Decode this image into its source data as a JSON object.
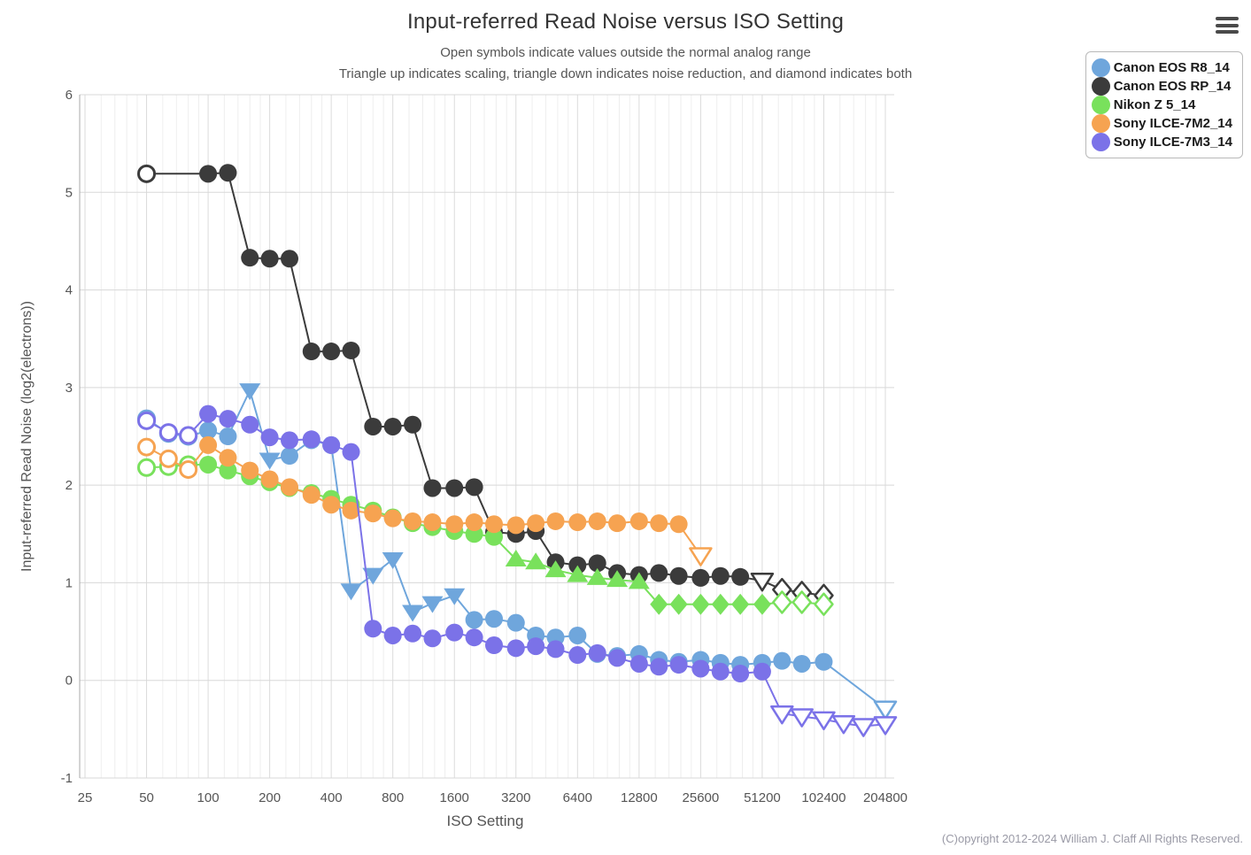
{
  "page": {
    "title": "Input-referred Read Noise versus ISO Setting",
    "subtitle1": "Open symbols indicate values outside the normal analog range",
    "subtitle2": "Triangle up indicates scaling, triangle down indicates noise reduction, and diamond indicates both",
    "copyright": "(C)opyright 2012-2024 William J. Claff All Rights Reserved.",
    "icons": {
      "menu": "hamburger-icon"
    }
  },
  "chart_data": {
    "type": "line",
    "title": "Input-referred Read Noise versus ISO Setting",
    "xlabel": "ISO Setting",
    "ylabel": "Input-referred Read Noise (log2(electrons))",
    "x_scale": "log2",
    "xlim": [
      25,
      204800
    ],
    "ylim": [
      -1,
      6
    ],
    "x_ticks": [
      25,
      50,
      100,
      200,
      400,
      800,
      1600,
      3200,
      6400,
      12800,
      25600,
      51200,
      102400,
      204800
    ],
    "y_ticks": [
      -1,
      0,
      1,
      2,
      3,
      4,
      5,
      6
    ],
    "grid": true,
    "legend_position": "top-right",
    "marker_semantics": {
      "open": "outside normal analog range",
      "triangle-up": "scaling",
      "triangle-down": "noise reduction",
      "diamond": "scaling and noise reduction"
    },
    "series": [
      {
        "name": "Canon EOS R8_14",
        "color": "#6FA6DC",
        "points": [
          [
            50,
            2.68,
            "circle-open"
          ],
          [
            64,
            2.53,
            "circle-open"
          ],
          [
            80,
            2.5,
            "circle-open"
          ],
          [
            100,
            2.56,
            "circle"
          ],
          [
            125,
            2.5,
            "circle"
          ],
          [
            160,
            2.97,
            "triangle-down"
          ],
          [
            200,
            2.26,
            "triangle-down"
          ],
          [
            250,
            2.3,
            "circle"
          ],
          [
            320,
            2.46,
            "circle"
          ],
          [
            400,
            2.41,
            "circle"
          ],
          [
            500,
            0.92,
            "triangle-down"
          ],
          [
            640,
            1.08,
            "triangle-down"
          ],
          [
            800,
            1.24,
            "triangle-down"
          ],
          [
            1000,
            0.7,
            "triangle-down"
          ],
          [
            1250,
            0.79,
            "triangle-down"
          ],
          [
            1600,
            0.87,
            "triangle-down"
          ],
          [
            2000,
            0.62,
            "circle"
          ],
          [
            2500,
            0.63,
            "circle"
          ],
          [
            3200,
            0.59,
            "circle"
          ],
          [
            4000,
            0.46,
            "circle"
          ],
          [
            5000,
            0.44,
            "circle"
          ],
          [
            6400,
            0.46,
            "circle"
          ],
          [
            8000,
            0.27,
            "circle"
          ],
          [
            10000,
            0.25,
            "circle"
          ],
          [
            12800,
            0.27,
            "circle"
          ],
          [
            16000,
            0.21,
            "circle"
          ],
          [
            20000,
            0.19,
            "circle"
          ],
          [
            25600,
            0.21,
            "circle"
          ],
          [
            32000,
            0.18,
            "circle"
          ],
          [
            40000,
            0.16,
            "circle"
          ],
          [
            51200,
            0.18,
            "circle"
          ],
          [
            64000,
            0.2,
            "circle"
          ],
          [
            80000,
            0.17,
            "circle"
          ],
          [
            102400,
            0.19,
            "circle"
          ],
          [
            204800,
            -0.29,
            "triangle-down-open"
          ]
        ]
      },
      {
        "name": "Canon EOS RP_14",
        "color": "#3B3B3B",
        "points": [
          [
            50,
            5.19,
            "circle-open"
          ],
          [
            100,
            5.19,
            "circle"
          ],
          [
            125,
            5.2,
            "circle"
          ],
          [
            160,
            4.33,
            "circle"
          ],
          [
            200,
            4.32,
            "circle"
          ],
          [
            250,
            4.32,
            "circle"
          ],
          [
            320,
            3.37,
            "circle"
          ],
          [
            400,
            3.37,
            "circle"
          ],
          [
            500,
            3.38,
            "circle"
          ],
          [
            640,
            2.6,
            "circle"
          ],
          [
            800,
            2.6,
            "circle"
          ],
          [
            1000,
            2.62,
            "circle"
          ],
          [
            1250,
            1.97,
            "circle"
          ],
          [
            1600,
            1.97,
            "circle"
          ],
          [
            2000,
            1.98,
            "circle"
          ],
          [
            2500,
            1.52,
            "circle"
          ],
          [
            3200,
            1.5,
            "circle"
          ],
          [
            4000,
            1.53,
            "circle"
          ],
          [
            5000,
            1.21,
            "circle"
          ],
          [
            6400,
            1.18,
            "circle"
          ],
          [
            8000,
            1.2,
            "circle"
          ],
          [
            10000,
            1.1,
            "circle"
          ],
          [
            12800,
            1.08,
            "circle"
          ],
          [
            16000,
            1.1,
            "circle"
          ],
          [
            20000,
            1.07,
            "circle"
          ],
          [
            25600,
            1.05,
            "circle"
          ],
          [
            32000,
            1.07,
            "circle"
          ],
          [
            40000,
            1.06,
            "circle"
          ],
          [
            51200,
            1.02,
            "triangle-down-open"
          ],
          [
            64000,
            0.93,
            "diamond-open"
          ],
          [
            80000,
            0.9,
            "diamond-open"
          ],
          [
            102400,
            0.87,
            "diamond-open"
          ]
        ]
      },
      {
        "name": "Nikon Z 5_14",
        "color": "#79E15C",
        "points": [
          [
            50,
            2.18,
            "circle-open"
          ],
          [
            64,
            2.19,
            "circle-open"
          ],
          [
            80,
            2.21,
            "circle-open"
          ],
          [
            100,
            2.21,
            "circle"
          ],
          [
            125,
            2.15,
            "circle"
          ],
          [
            160,
            2.09,
            "circle"
          ],
          [
            200,
            2.03,
            "circle"
          ],
          [
            250,
            1.97,
            "circle"
          ],
          [
            320,
            1.92,
            "circle"
          ],
          [
            400,
            1.86,
            "circle"
          ],
          [
            500,
            1.8,
            "circle"
          ],
          [
            640,
            1.74,
            "circle"
          ],
          [
            800,
            1.67,
            "circle"
          ],
          [
            1000,
            1.61,
            "circle"
          ],
          [
            1250,
            1.57,
            "circle"
          ],
          [
            1600,
            1.53,
            "circle"
          ],
          [
            2000,
            1.5,
            "circle"
          ],
          [
            2500,
            1.47,
            "circle"
          ],
          [
            3200,
            1.24,
            "triangle-up"
          ],
          [
            4000,
            1.21,
            "triangle-up"
          ],
          [
            5000,
            1.13,
            "triangle-up"
          ],
          [
            6400,
            1.08,
            "triangle-up"
          ],
          [
            8000,
            1.05,
            "triangle-up"
          ],
          [
            10000,
            1.03,
            "triangle-up"
          ],
          [
            12800,
            1.01,
            "triangle-up"
          ],
          [
            16000,
            0.78,
            "diamond"
          ],
          [
            20000,
            0.78,
            "diamond"
          ],
          [
            25600,
            0.78,
            "diamond"
          ],
          [
            32000,
            0.78,
            "diamond"
          ],
          [
            40000,
            0.78,
            "diamond"
          ],
          [
            51200,
            0.78,
            "diamond"
          ],
          [
            64000,
            0.8,
            "diamond-open"
          ],
          [
            80000,
            0.8,
            "diamond-open"
          ],
          [
            102400,
            0.78,
            "diamond-open"
          ]
        ]
      },
      {
        "name": "Sony ILCE-7M2_14",
        "color": "#F6A351",
        "points": [
          [
            50,
            2.39,
            "circle-open"
          ],
          [
            64,
            2.27,
            "circle-open"
          ],
          [
            80,
            2.16,
            "circle-open"
          ],
          [
            100,
            2.41,
            "circle"
          ],
          [
            125,
            2.28,
            "circle"
          ],
          [
            160,
            2.15,
            "circle"
          ],
          [
            200,
            2.06,
            "circle"
          ],
          [
            250,
            1.98,
            "circle"
          ],
          [
            320,
            1.9,
            "circle"
          ],
          [
            400,
            1.8,
            "circle"
          ],
          [
            500,
            1.74,
            "circle"
          ],
          [
            640,
            1.71,
            "circle"
          ],
          [
            800,
            1.66,
            "circle"
          ],
          [
            1000,
            1.63,
            "circle"
          ],
          [
            1250,
            1.62,
            "circle"
          ],
          [
            1600,
            1.6,
            "circle"
          ],
          [
            2000,
            1.62,
            "circle"
          ],
          [
            2500,
            1.6,
            "circle"
          ],
          [
            3200,
            1.59,
            "circle"
          ],
          [
            4000,
            1.61,
            "circle"
          ],
          [
            5000,
            1.63,
            "circle"
          ],
          [
            6400,
            1.62,
            "circle"
          ],
          [
            8000,
            1.63,
            "circle"
          ],
          [
            10000,
            1.61,
            "circle"
          ],
          [
            12800,
            1.63,
            "circle"
          ],
          [
            16000,
            1.61,
            "circle"
          ],
          [
            20000,
            1.6,
            "circle"
          ],
          [
            25600,
            1.28,
            "triangle-down-open"
          ]
        ]
      },
      {
        "name": "Sony ILCE-7M3_14",
        "color": "#7B72E8",
        "points": [
          [
            50,
            2.66,
            "circle-open"
          ],
          [
            64,
            2.54,
            "circle-open"
          ],
          [
            80,
            2.51,
            "circle-open"
          ],
          [
            100,
            2.73,
            "circle"
          ],
          [
            125,
            2.68,
            "circle"
          ],
          [
            160,
            2.62,
            "circle"
          ],
          [
            200,
            2.49,
            "circle"
          ],
          [
            250,
            2.46,
            "circle"
          ],
          [
            320,
            2.47,
            "circle"
          ],
          [
            400,
            2.41,
            "circle"
          ],
          [
            500,
            2.34,
            "circle"
          ],
          [
            640,
            0.53,
            "circle"
          ],
          [
            800,
            0.46,
            "circle"
          ],
          [
            1000,
            0.48,
            "circle"
          ],
          [
            1250,
            0.43,
            "circle"
          ],
          [
            1600,
            0.49,
            "circle"
          ],
          [
            2000,
            0.44,
            "circle"
          ],
          [
            2500,
            0.36,
            "circle"
          ],
          [
            3200,
            0.33,
            "circle"
          ],
          [
            4000,
            0.35,
            "circle"
          ],
          [
            5000,
            0.32,
            "circle"
          ],
          [
            6400,
            0.26,
            "circle"
          ],
          [
            8000,
            0.28,
            "circle"
          ],
          [
            10000,
            0.23,
            "circle"
          ],
          [
            12800,
            0.17,
            "circle"
          ],
          [
            16000,
            0.14,
            "circle"
          ],
          [
            20000,
            0.16,
            "circle"
          ],
          [
            25600,
            0.12,
            "circle"
          ],
          [
            32000,
            0.09,
            "circle"
          ],
          [
            40000,
            0.07,
            "circle"
          ],
          [
            51200,
            0.09,
            "circle"
          ],
          [
            64000,
            -0.34,
            "triangle-down-open"
          ],
          [
            80000,
            -0.37,
            "triangle-down-open"
          ],
          [
            102400,
            -0.4,
            "triangle-down-open"
          ],
          [
            128000,
            -0.44,
            "triangle-down-open"
          ],
          [
            160000,
            -0.47,
            "triangle-down-open"
          ],
          [
            204800,
            -0.45,
            "triangle-down-open"
          ]
        ]
      }
    ]
  }
}
